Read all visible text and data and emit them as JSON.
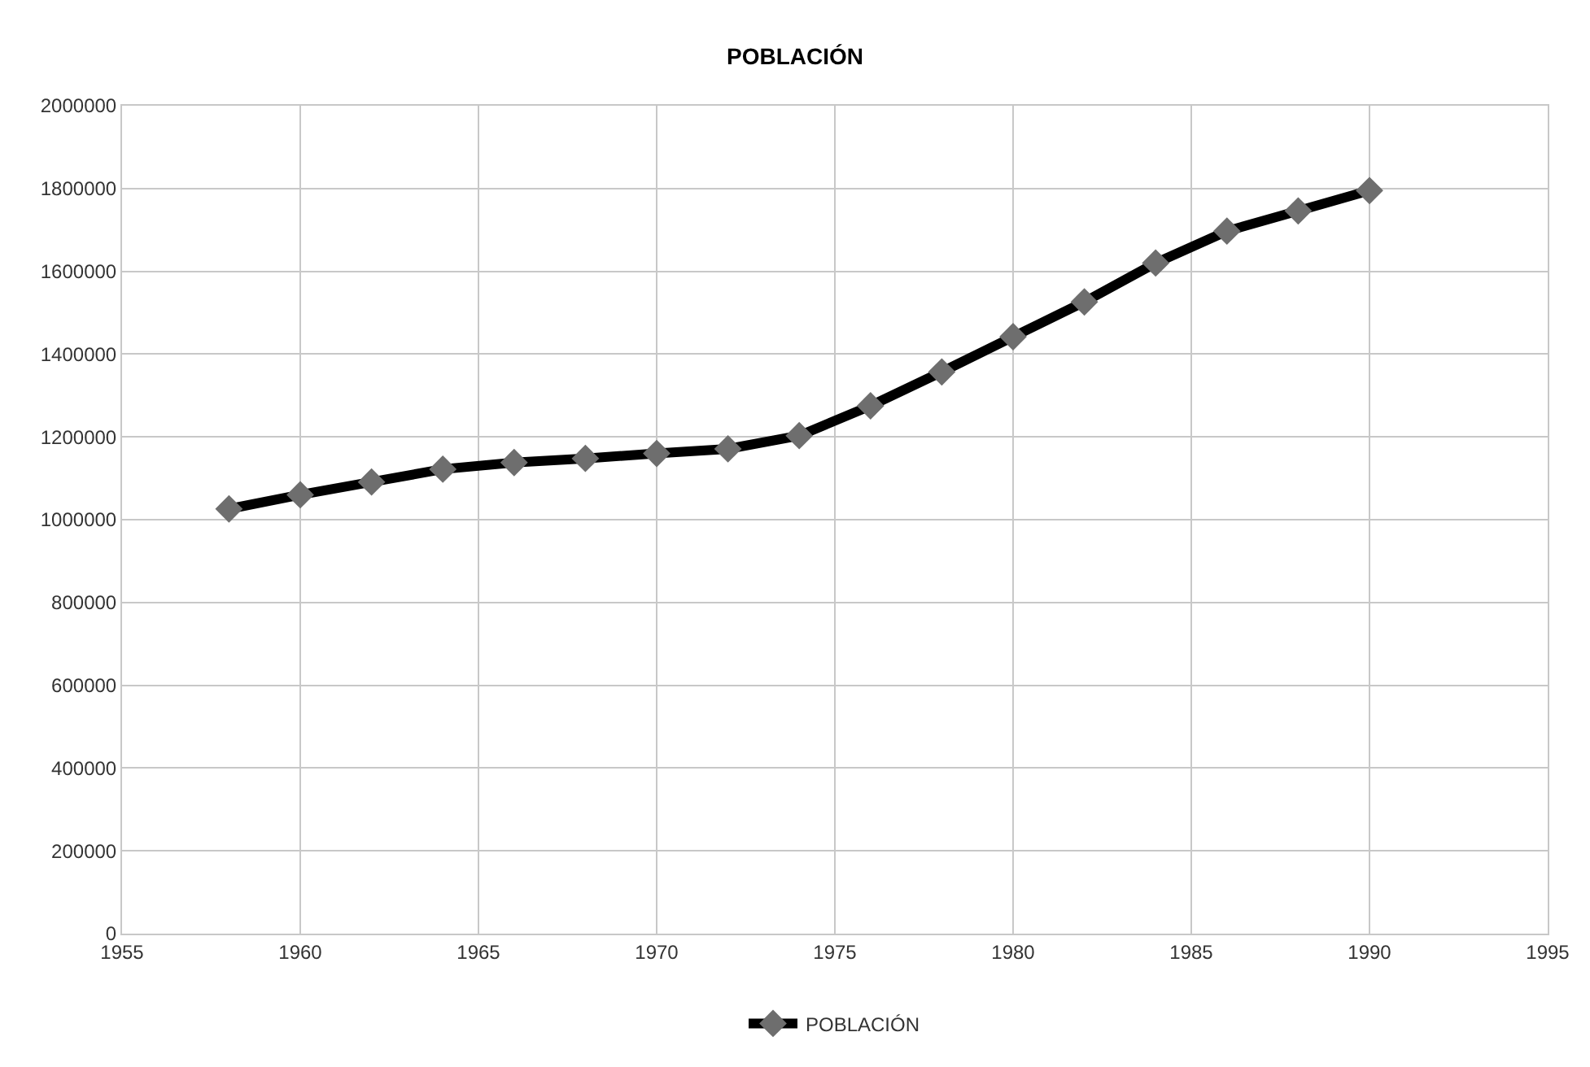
{
  "chart_data": {
    "type": "line",
    "title": "POBLACIÓN",
    "x": [
      1958,
      1960,
      1962,
      1964,
      1966,
      1968,
      1970,
      1972,
      1974,
      1976,
      1978,
      1980,
      1982,
      1984,
      1986,
      1988,
      1990
    ],
    "series": [
      {
        "name": "POBLACIÓN",
        "color": "#000000",
        "values": [
          1026000,
          1060000,
          1091000,
          1122000,
          1138000,
          1148000,
          1160000,
          1171000,
          1203000,
          1275000,
          1357000,
          1442000,
          1526000,
          1620000,
          1697000,
          1746000,
          1795000
        ]
      }
    ],
    "xlim": [
      1955,
      1995
    ],
    "xticks": [
      1955,
      1960,
      1965,
      1970,
      1975,
      1980,
      1985,
      1990,
      1995
    ],
    "ylim": [
      0,
      2000000
    ],
    "yticks": [
      0,
      200000,
      400000,
      600000,
      800000,
      1000000,
      1200000,
      1400000,
      1600000,
      1800000,
      2000000
    ],
    "grid": true,
    "legend": "bottom",
    "marker": "diamond",
    "line_style": "solid"
  }
}
